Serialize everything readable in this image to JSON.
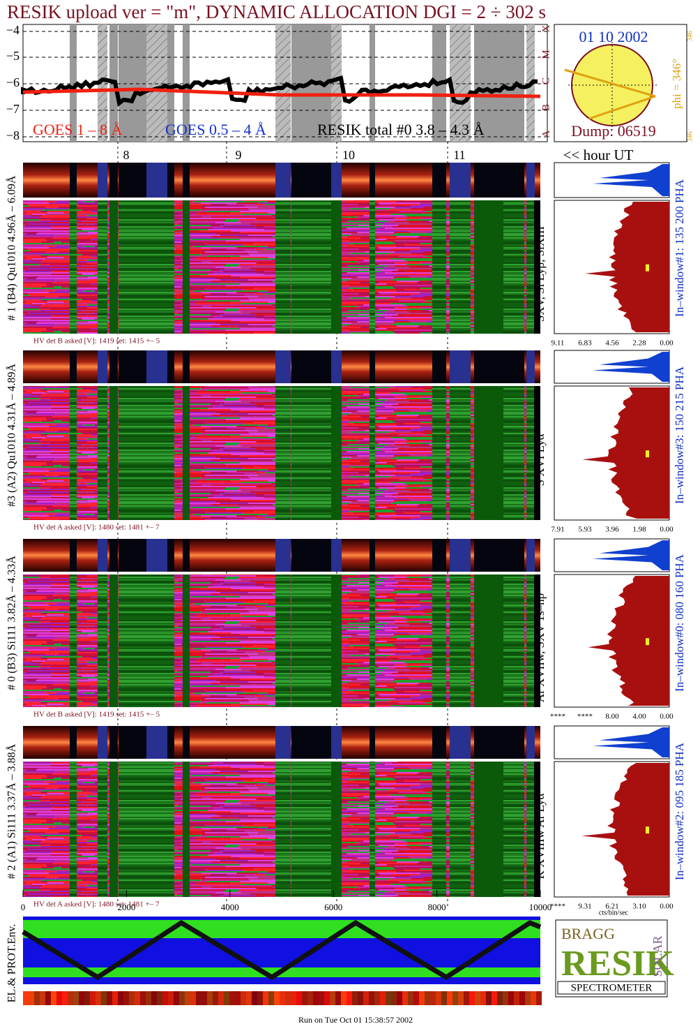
{
  "header": {
    "title": "RESIK upload ver = \"m\", DYNAMIC ALLOCATION  DGI =   2 ÷ 302 s"
  },
  "goes_panel": {
    "yticks": [
      "−4",
      "−5",
      "−6",
      "−7",
      "−8"
    ],
    "classes": [
      "X",
      "M",
      "C",
      "B",
      "A"
    ],
    "legend": [
      "GOES 1 – 8 Å",
      "GOES 0.5 – 4 Å",
      "RESIK total #0  3.8 – 4.3 Å"
    ]
  },
  "sun": {
    "date": "01 10 2002",
    "phi": "phi = 346°",
    "phi_top": "346",
    "phi_bottom": "346",
    "dump": "Dump: 06519"
  },
  "hours": {
    "ticks": [
      "8",
      "9",
      "10",
      "11"
    ],
    "label": "<< hour UT"
  },
  "detectors": [
    {
      "label": "# 1 (B4) Qu1010 4.96Å – 6.09Å",
      "lines": "SXV, Si Lyβ, SiXIII",
      "window": "In–window#1:  135 200 PHA",
      "hv": "HV det B asked [V]:  1419 set:  1415  +–    5",
      "hist_ticks": [
        "9.11",
        "6.83",
        "4.56",
        "2.28",
        "0.00"
      ]
    },
    {
      "label": "#3 (A2) Qu1010  4.31Å – 4.89Å",
      "lines": "S XVI Lyα",
      "window": "In–window#3:  150 215 PHA",
      "hv": "HV det A asked [V]:  1480 set:  1481  +–    7",
      "hist_ticks": [
        "7.91",
        "5.93",
        "3.96",
        "1.98",
        "0.00"
      ]
    },
    {
      "label": "# 0 (B3) Si111  3.82Å – 4.33Å",
      "lines": "Ar XVIIw,  SXV 1s–np",
      "window": "In–window#0:  080 160 PHA",
      "hv": "HV det B asked [V]:  1419 set:  1415  +–    5",
      "hist_ticks": [
        "****",
        "****",
        "8.00",
        "4.00",
        "0.00"
      ]
    },
    {
      "label": "# 2 (A1) Si111  3.37Å – 3.88Å",
      "lines": "K XVIIIw  Ar Lyα",
      "window": "In–window#2:  095 185 PHA",
      "hv": "HV det A asked [V]:  1480 set:  1481  +–    7",
      "hist_ticks": [
        "****",
        "9.31",
        "6.21",
        "3.10",
        "0.00"
      ]
    }
  ],
  "bottom_axis": {
    "ticks": [
      "0",
      "2000",
      "4000",
      "6000",
      "8000",
      "10000"
    ],
    "unit": "cts/bin/sec"
  },
  "env": {
    "label": "EL.& PROT.Env."
  },
  "logo": {
    "top": "BRAGG",
    "word": "RESIK",
    "side": "SOLAR",
    "bottom": "SPECTROMETER"
  },
  "footer": "Run on Tue Oct 01 15:38:57 2002"
}
